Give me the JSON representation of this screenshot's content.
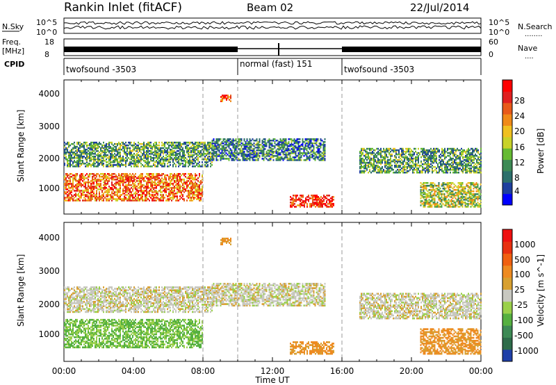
{
  "header": {
    "station": "Rankin Inlet (fitACF)",
    "beam": "Beam 02",
    "date": "22/Jul/2014"
  },
  "noise_panel": {
    "left_label": "N.Sky",
    "right_label": "N.Search",
    "right_sublabel": "........",
    "left_ticks": [
      "10^5",
      "10^0"
    ],
    "right_ticks": [
      "10^5",
      "10^0"
    ]
  },
  "freq_panel": {
    "left_label": "Freq.",
    "left_unit": "[MHz]",
    "right_label": "Nave",
    "right_sublabel": "....",
    "left_ticks": [
      "18",
      "8"
    ],
    "right_ticks": [
      "60",
      "0"
    ]
  },
  "cpid_panel": {
    "label": "CPID",
    "segments": [
      {
        "label": "twofsound -3503",
        "start_hour": 0,
        "end_hour": 10
      },
      {
        "label": "normal (fast) 151",
        "start_hour": 10,
        "end_hour": 16
      },
      {
        "label": "twofsound -3503",
        "start_hour": 16,
        "end_hour": 24
      }
    ]
  },
  "power_panel": {
    "ylabel": "Slant Range [km]",
    "yticks": [
      "4000",
      "3000",
      "2000",
      "1000"
    ],
    "colorbar_label": "Power [dB]",
    "colorbar_ticks": [
      "28",
      "24",
      "20",
      "16",
      "12",
      "8",
      "4"
    ],
    "colorbar_colors": [
      "#0000ff",
      "#1e3f9e",
      "#2c6f6b",
      "#3d8a55",
      "#66bb33",
      "#c8d22a",
      "#f0c020",
      "#f08a18",
      "#e85a1a",
      "#e02020",
      "#ff0000"
    ]
  },
  "velocity_panel": {
    "ylabel": "Slant Range [km]",
    "yticks": [
      "4000",
      "3000",
      "2000",
      "1000"
    ],
    "colorbar_label": "Velocity [m s^-1]",
    "colorbar_ticks": [
      "1000",
      "500",
      "100",
      "25",
      "-25",
      "-100",
      "-500",
      "-1000"
    ],
    "colorbar_colors": [
      "#1f3fa8",
      "#2e6c4a",
      "#3d8a55",
      "#55b040",
      "#9ad04a",
      "#c8c8c0",
      "#d8a030",
      "#ee8a20",
      "#f06010",
      "#e83010",
      "#ee1010"
    ]
  },
  "x_axis": {
    "ticks": [
      "00:00",
      "04:00",
      "08:00",
      "12:00",
      "16:00",
      "20:00",
      "00:00"
    ],
    "label": "Time UT"
  },
  "chart_data": {
    "type": "heatmap",
    "x_range_hours": [
      0,
      24
    ],
    "y_range_km": [
      180,
      4500
    ],
    "power_scale_db": [
      0,
      30
    ],
    "velocity_scale_ms": [
      -1000,
      1000
    ],
    "echo_regions": [
      {
        "t0": 0.0,
        "t1": 8.0,
        "r0": 600,
        "r1": 1500,
        "power_db": 22,
        "velocity_ms": 300
      },
      {
        "t0": 0.0,
        "t1": 8.5,
        "r0": 1700,
        "r1": 2500,
        "power_db": 10,
        "velocity_ms": 0
      },
      {
        "t0": 8.5,
        "t1": 15.0,
        "r0": 1900,
        "r1": 2600,
        "power_db": 8,
        "velocity_ms": 0
      },
      {
        "t0": 13.0,
        "t1": 15.5,
        "r0": 400,
        "r1": 800,
        "power_db": 26,
        "velocity_ms": -300
      },
      {
        "t0": 17.0,
        "t1": 24.0,
        "r0": 1500,
        "r1": 2300,
        "power_db": 10,
        "velocity_ms": 0
      },
      {
        "t0": 20.5,
        "t1": 24.0,
        "r0": 400,
        "r1": 1200,
        "power_db": 14,
        "velocity_ms": -300
      },
      {
        "t0": 9.0,
        "t1": 9.6,
        "r0": 3800,
        "r1": 4000,
        "power_db": 24,
        "velocity_ms": -300
      }
    ]
  }
}
